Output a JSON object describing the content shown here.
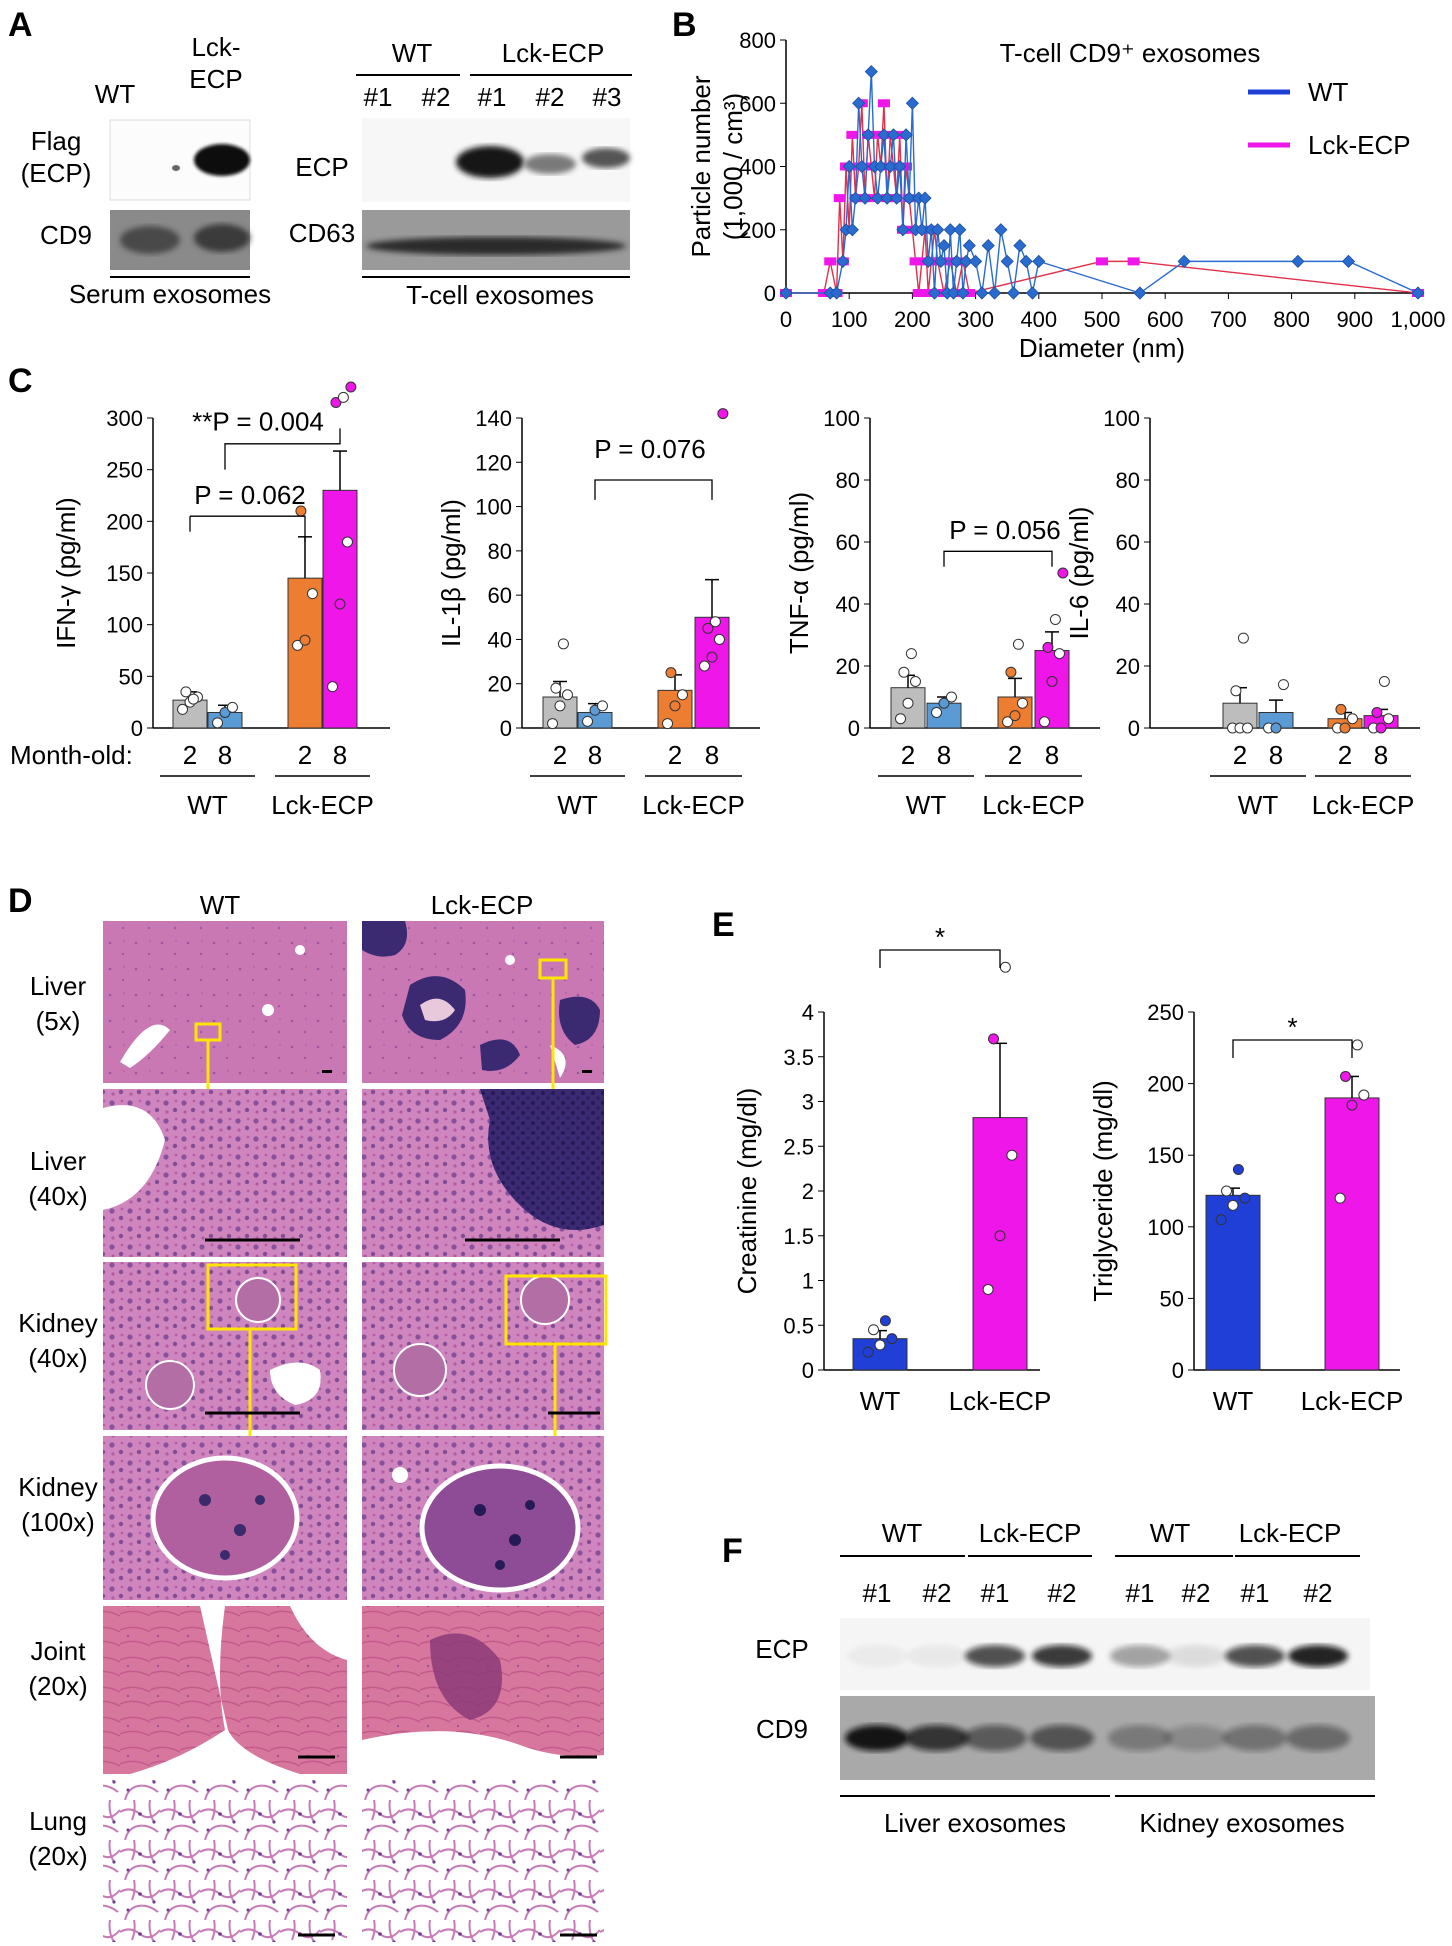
{
  "panels": {
    "A": {
      "letter": "A",
      "serum_blot": {
        "columns": [
          "WT",
          "Lck-\nECP"
        ],
        "rows": [
          "Flag\n(ECP)",
          "CD9"
        ],
        "footer": "Serum exosomes"
      },
      "tcell_blot": {
        "groups": [
          "WT",
          "Lck-ECP"
        ],
        "lanes": [
          "#1",
          "#2",
          "#1",
          "#2",
          "#3"
        ],
        "rows": [
          "ECP",
          "CD63"
        ],
        "footer": "T-cell exosomes"
      }
    },
    "B": {
      "letter": "B"
    },
    "C": {
      "letter": "C",
      "month_label": "Month-old:",
      "month_ticks": [
        "2",
        "8",
        "2",
        "8"
      ],
      "groups": [
        "WT",
        "Lck-ECP"
      ]
    },
    "D": {
      "letter": "D",
      "columns": [
        "WT",
        "Lck-ECP"
      ],
      "rows": [
        [
          "Liver",
          "(5x)"
        ],
        [
          "Liver",
          "(40x)"
        ],
        [
          "Kidney",
          "(40x)"
        ],
        [
          "Kidney",
          "(100x)"
        ],
        [
          "Joint",
          "(20x)"
        ],
        [
          "Lung",
          "(20x)"
        ]
      ]
    },
    "E": {
      "letter": "E"
    },
    "F": {
      "letter": "F",
      "groups": [
        "WT",
        "Lck-ECP",
        "WT",
        "Lck-ECP"
      ],
      "lanes": [
        "#1",
        "#2",
        "#1",
        "#2",
        "#1",
        "#2",
        "#1",
        "#2"
      ],
      "rows": [
        "ECP",
        "CD9"
      ],
      "footers": [
        "Liver exosomes",
        "Kidney exosomes"
      ]
    }
  },
  "colors": {
    "wt_blue": "#1f3fd6",
    "wt_diamond": "#2a6bd0",
    "lck_magenta": "#ee16e8",
    "wt_grey": "#bdbdbd",
    "wt_lightblue": "#5b9bd5",
    "lck_orange": "#ed7d31",
    "he_pink": "#c86fae",
    "he_purple": "#3a2a6e"
  },
  "chart_data": [
    {
      "id": "B",
      "type": "line",
      "title": "T-cell CD9⁺ exosomes",
      "xlabel": "Diameter (nm)",
      "ylabel": "Particle number\n(1,000 / cm³)",
      "xlim": [
        0,
        1000
      ],
      "ylim": [
        0,
        800
      ],
      "xticks": [
        "0",
        "100",
        "200",
        "300",
        "400",
        "500",
        "600",
        "700",
        "800",
        "900",
        "1,000"
      ],
      "yticks": [
        "0",
        "200",
        "400",
        "600",
        "800"
      ],
      "legend": "top-right",
      "series": [
        {
          "name": "WT",
          "x": [
            0,
            70,
            80,
            90,
            95,
            100,
            105,
            110,
            115,
            120,
            125,
            130,
            135,
            140,
            145,
            150,
            155,
            160,
            165,
            170,
            175,
            180,
            185,
            190,
            195,
            200,
            205,
            210,
            215,
            220,
            225,
            230,
            235,
            240,
            245,
            250,
            255,
            260,
            265,
            270,
            275,
            280,
            285,
            290,
            300,
            310,
            320,
            330,
            340,
            350,
            360,
            370,
            380,
            390,
            400,
            560,
            630,
            810,
            890,
            1000
          ],
          "y": [
            0,
            0,
            0,
            100,
            200,
            400,
            200,
            300,
            600,
            400,
            300,
            500,
            700,
            400,
            300,
            400,
            500,
            300,
            400,
            500,
            300,
            400,
            200,
            500,
            300,
            600,
            200,
            300,
            200,
            300,
            100,
            200,
            0,
            200,
            100,
            150,
            0,
            200,
            0,
            100,
            200,
            0,
            100,
            150,
            100,
            0,
            150,
            0,
            200,
            100,
            0,
            150,
            100,
            0,
            100,
            0,
            100,
            100,
            100,
            0
          ]
        },
        {
          "name": "Lck-ECP",
          "x": [
            0,
            60,
            70,
            80,
            85,
            90,
            95,
            100,
            105,
            110,
            115,
            120,
            125,
            130,
            135,
            140,
            145,
            150,
            155,
            160,
            165,
            170,
            175,
            180,
            185,
            190,
            195,
            200,
            205,
            210,
            215,
            220,
            225,
            230,
            235,
            240,
            250,
            260,
            270,
            280,
            290,
            500,
            550,
            1000
          ],
          "y": [
            0,
            0,
            100,
            0,
            300,
            100,
            400,
            200,
            500,
            300,
            400,
            600,
            300,
            500,
            400,
            300,
            500,
            400,
            600,
            300,
            500,
            400,
            300,
            500,
            200,
            400,
            300,
            200,
            100,
            0,
            100,
            200,
            0,
            100,
            200,
            100,
            0,
            100,
            0,
            100,
            0,
            100,
            100,
            0
          ]
        }
      ]
    },
    {
      "id": "C1",
      "type": "bar",
      "ylabel": "IFN-γ (pg/ml)",
      "ylim": [
        0,
        300
      ],
      "yticks": [
        "0",
        "50",
        "100",
        "150",
        "200",
        "250",
        "300"
      ],
      "categories": [
        "WT 2",
        "WT 8",
        "Lck-ECP 2",
        "Lck-ECP 8"
      ],
      "values": [
        27,
        15,
        145,
        230
      ],
      "errors": [
        8,
        7,
        40,
        38
      ],
      "points": [
        [
          18,
          25,
          30,
          35,
          28
        ],
        [
          5,
          15,
          20
        ],
        [
          80,
          85,
          130,
          210
        ],
        [
          40,
          120,
          180,
          315,
          320,
          330
        ]
      ],
      "annotations": [
        "**P = 0.004",
        "P = 0.062"
      ]
    },
    {
      "id": "C2",
      "type": "bar",
      "ylabel": "IL-1β (pg/ml)",
      "ylim": [
        0,
        140
      ],
      "yticks": [
        "0",
        "20",
        "40",
        "60",
        "80",
        "100",
        "120",
        "140"
      ],
      "categories": [
        "WT 2",
        "WT 8",
        "Lck-ECP 2",
        "Lck-ECP 8"
      ],
      "values": [
        14,
        7,
        17,
        50
      ],
      "errors": [
        7,
        4,
        7,
        17
      ],
      "points": [
        [
          2,
          10,
          15,
          18,
          38
        ],
        [
          3,
          8,
          10
        ],
        [
          2,
          10,
          15,
          25
        ],
        [
          28,
          32,
          40,
          45,
          48,
          142
        ]
      ],
      "annotations": [
        "P = 0.076"
      ]
    },
    {
      "id": "C3",
      "type": "bar",
      "ylabel": "TNF-α (pg/ml)",
      "ylim": [
        0,
        100
      ],
      "yticks": [
        "0",
        "20",
        "40",
        "60",
        "80",
        "100"
      ],
      "categories": [
        "WT 2",
        "WT 8",
        "Lck-ECP 2",
        "Lck-ECP 8"
      ],
      "values": [
        13,
        8,
        10,
        25
      ],
      "errors": [
        4,
        2,
        6,
        6
      ],
      "points": [
        [
          3,
          8,
          15,
          18,
          24
        ],
        [
          5,
          8,
          10
        ],
        [
          2,
          4,
          8,
          18,
          27
        ],
        [
          2,
          15,
          24,
          26,
          35,
          50
        ]
      ],
      "annotations": [
        "P = 0.056"
      ]
    },
    {
      "id": "C4",
      "type": "bar",
      "ylabel": "IL-6 (pg/ml)",
      "ylim": [
        0,
        100
      ],
      "yticks": [
        "0",
        "20",
        "40",
        "60",
        "80",
        "100"
      ],
      "categories": [
        "WT 2",
        "WT 8",
        "Lck-ECP 2",
        "Lck-ECP 8"
      ],
      "values": [
        8,
        5,
        3,
        4
      ],
      "errors": [
        5,
        4,
        2,
        2
      ],
      "points": [
        [
          0,
          0,
          0,
          12,
          29
        ],
        [
          0,
          0,
          14
        ],
        [
          0,
          0,
          3,
          6
        ],
        [
          0,
          0,
          3,
          5,
          15
        ]
      ],
      "annotations": []
    },
    {
      "id": "E1",
      "type": "bar",
      "ylabel": "Creatinine (mg/dl)",
      "ylim": [
        0,
        4
      ],
      "yticks": [
        "0",
        "0.5",
        "1",
        "1.5",
        "2",
        "2.5",
        "3",
        "3.5",
        "4"
      ],
      "categories": [
        "WT",
        "Lck-ECP"
      ],
      "values": [
        0.35,
        2.82
      ],
      "errors": [
        0.09,
        0.83
      ],
      "points": [
        [
          0.2,
          0.28,
          0.35,
          0.45,
          0.55
        ],
        [
          0.9,
          1.5,
          2.4,
          3.7,
          4.5
        ]
      ],
      "annotations": [
        "*"
      ]
    },
    {
      "id": "E2",
      "type": "bar",
      "ylabel": "Triglyceride (mg/dl)",
      "ylim": [
        0,
        250
      ],
      "yticks": [
        "0",
        "50",
        "100",
        "150",
        "200",
        "250"
      ],
      "categories": [
        "WT",
        "Lck-ECP"
      ],
      "values": [
        122,
        190
      ],
      "errors": [
        5,
        15
      ],
      "points": [
        [
          105,
          115,
          120,
          125,
          140
        ],
        [
          120,
          185,
          192,
          205,
          227
        ]
      ],
      "annotations": [
        "*"
      ]
    }
  ]
}
